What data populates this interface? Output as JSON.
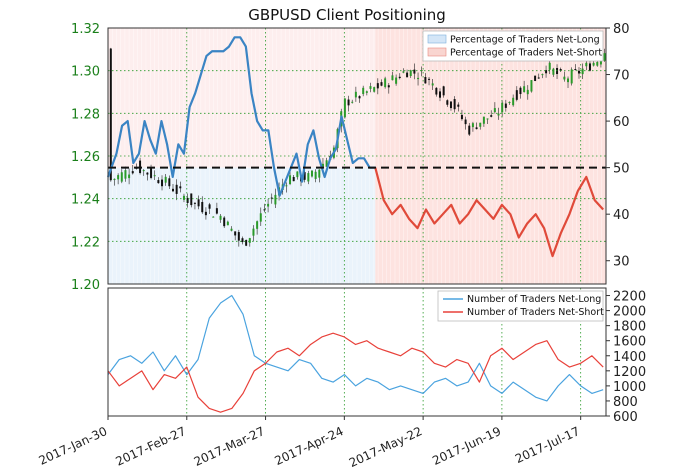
{
  "chart_data": [
    {
      "type": "line",
      "title": "GBPUSD Client Positioning",
      "left_axis": {
        "ylim": [
          1.2,
          1.32
        ],
        "ticks": [
          "1.20",
          "1.22",
          "1.24",
          "1.26",
          "1.28",
          "1.30",
          "1.32"
        ]
      },
      "right_axis": {
        "ylim": [
          25,
          80
        ],
        "ticks": [
          "30",
          "40",
          "50",
          "60",
          "70",
          "80"
        ]
      },
      "x_ticks": [
        "2017-Jan-30",
        "2017-Feb-27",
        "2017-Mar-27",
        "2017-Apr-24",
        "2017-May-22",
        "2017-Jun-19",
        "2017-Jul-17"
      ],
      "x_range_days": [
        0,
        177
      ],
      "reference_line": 50,
      "legend_placement": "top-right",
      "series": [
        {
          "name": "Percentage of Traders Net-Long",
          "color": "#3a84c4",
          "fill": "#d4e6f7",
          "x": [
            0,
            3,
            5,
            7,
            9,
            11,
            13,
            15,
            17,
            19,
            21,
            23,
            25,
            27,
            29,
            31,
            33,
            35,
            37,
            39,
            41,
            43,
            45,
            47,
            49,
            51,
            53,
            55,
            57,
            59,
            61,
            63,
            65,
            67,
            69,
            71,
            73,
            75,
            77,
            79,
            81,
            83,
            85,
            87,
            89,
            91,
            93,
            95
          ],
          "y": [
            48,
            53,
            59,
            60,
            51,
            53,
            60,
            56,
            53,
            60,
            55,
            48,
            55,
            53,
            63,
            66,
            70,
            74,
            75,
            75,
            75,
            76,
            78,
            78,
            76,
            66,
            60,
            58,
            58,
            50,
            44,
            47,
            50,
            53,
            47,
            55,
            58,
            52,
            48,
            52,
            54,
            61,
            56,
            51,
            52,
            52,
            50,
            50
          ]
        },
        {
          "name": "Percentage of Traders Net-Short",
          "color": "#e04a3a",
          "fill": "#f9d5d0",
          "x": [
            95,
            98,
            101,
            104,
            107,
            110,
            113,
            116,
            119,
            122,
            125,
            128,
            131,
            134,
            137,
            140,
            143,
            146,
            149,
            152,
            155,
            158,
            161,
            164,
            167,
            170,
            173,
            176
          ],
          "y": [
            50,
            43,
            40,
            42,
            39,
            37,
            41,
            38,
            40,
            42,
            38,
            40,
            43,
            41,
            39,
            42,
            40,
            35,
            38,
            40,
            37,
            31,
            36,
            40,
            45,
            48,
            43,
            41
          ]
        }
      ]
    },
    {
      "type": "line",
      "right_axis": {
        "ylim": [
          600,
          2300
        ],
        "ticks": [
          "600",
          "800",
          "1000",
          "1200",
          "1400",
          "1600",
          "1800",
          "2000",
          "2200"
        ]
      },
      "legend_placement": "top-right",
      "series": [
        {
          "name": "Number of Traders Net-Long",
          "color": "#4aa3df",
          "x": [
            0,
            4,
            8,
            12,
            16,
            20,
            24,
            28,
            32,
            36,
            40,
            44,
            48,
            52,
            56,
            60,
            64,
            68,
            72,
            76,
            80,
            84,
            88,
            92,
            96,
            100,
            104,
            108,
            112,
            116,
            120,
            124,
            128,
            132,
            136,
            140,
            144,
            148,
            152,
            156,
            160,
            164,
            168,
            172,
            176
          ],
          "y": [
            1150,
            1350,
            1400,
            1300,
            1450,
            1200,
            1400,
            1150,
            1350,
            1900,
            2100,
            2200,
            1950,
            1400,
            1300,
            1250,
            1200,
            1350,
            1300,
            1100,
            1050,
            1150,
            1000,
            1100,
            1050,
            950,
            1000,
            950,
            900,
            1050,
            1100,
            1000,
            1050,
            1300,
            1000,
            900,
            1050,
            950,
            850,
            800,
            1000,
            1150,
            1000,
            900,
            950
          ]
        },
        {
          "name": "Number of Traders Net-Short",
          "color": "#e8413a",
          "x": [
            0,
            4,
            8,
            12,
            16,
            20,
            24,
            28,
            32,
            36,
            40,
            44,
            48,
            52,
            56,
            60,
            64,
            68,
            72,
            76,
            80,
            84,
            88,
            92,
            96,
            100,
            104,
            108,
            112,
            116,
            120,
            124,
            128,
            132,
            136,
            140,
            144,
            148,
            152,
            156,
            160,
            164,
            168,
            172,
            176
          ],
          "y": [
            1200,
            1000,
            1100,
            1200,
            950,
            1150,
            1100,
            1250,
            850,
            700,
            650,
            700,
            900,
            1200,
            1300,
            1450,
            1500,
            1400,
            1550,
            1650,
            1700,
            1650,
            1550,
            1600,
            1500,
            1450,
            1400,
            1500,
            1450,
            1300,
            1250,
            1350,
            1300,
            1050,
            1400,
            1500,
            1350,
            1450,
            1550,
            1600,
            1350,
            1250,
            1300,
            1400,
            1250
          ]
        }
      ]
    }
  ]
}
